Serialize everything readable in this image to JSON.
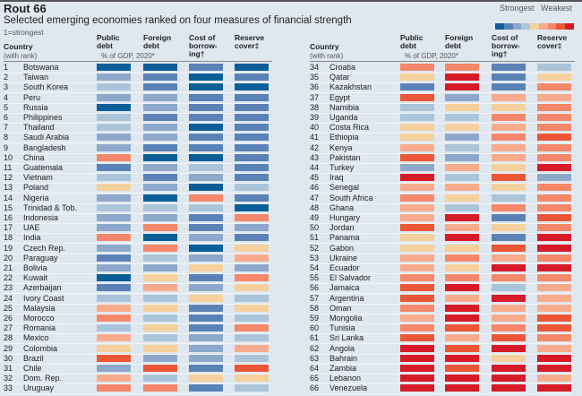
{
  "title": "Rout 66",
  "subtitle": "Selected emerging economies ranked on four measures of financial strength",
  "note": "1=strongest",
  "legend": {
    "strongest": "Strongest",
    "weakest": "Weakest"
  },
  "headers": {
    "country": "Country",
    "country_sub": "(with rank)",
    "public": "Public debt",
    "foreign": "Foreign debt",
    "units": "% of GDP, 2020*",
    "cost": "Cost of borrow-ing†",
    "reserve": "Reserve cover‡"
  },
  "colors": [
    "#0b5e98",
    "#5a82b6",
    "#8ea8cb",
    "#aac5da",
    "#f5d09c",
    "#f8ab8c",
    "#f5876a",
    "#ec5636",
    "#d61a28"
  ],
  "chart_data": {
    "type": "heatmap",
    "scale": "1 = strongest (dark blue) to 9 = weakest (red), colour level",
    "columns": [
      "Public debt",
      "Foreign debt",
      "Cost of borrowing",
      "Reserve cover"
    ],
    "rows": [
      [
        "1",
        "Botswana",
        [
          1,
          1,
          2,
          1
        ]
      ],
      [
        "2",
        "Taiwan",
        [
          3,
          2,
          1,
          2
        ]
      ],
      [
        "3",
        "South Korea",
        [
          4,
          2,
          1,
          1
        ]
      ],
      [
        "4",
        "Peru",
        [
          3,
          3,
          2,
          2
        ]
      ],
      [
        "5",
        "Russia",
        [
          1,
          3,
          2,
          2
        ]
      ],
      [
        "6",
        "Philippines",
        [
          4,
          2,
          2,
          2
        ]
      ],
      [
        "7",
        "Thailand",
        [
          4,
          3,
          1,
          2
        ]
      ],
      [
        "8",
        "Saudi Arabia",
        [
          3,
          3,
          2,
          2
        ]
      ],
      [
        "9",
        "Bangladesh",
        [
          3,
          2,
          2,
          2
        ]
      ],
      [
        "10",
        "China",
        [
          7,
          1,
          1,
          2
        ]
      ],
      [
        "11",
        "Guatemala",
        [
          2,
          3,
          4,
          2
        ]
      ],
      [
        "12",
        "Vietnam",
        [
          4,
          2,
          3,
          2
        ]
      ],
      [
        "13",
        "Poland",
        [
          5,
          3,
          1,
          4
        ]
      ],
      [
        "14",
        "Nigeria",
        [
          3,
          1,
          7,
          2
        ]
      ],
      [
        "15",
        "Trinidad & Tob.",
        [
          4,
          4,
          4,
          1
        ]
      ],
      [
        "16",
        "Indonesia",
        [
          3,
          3,
          2,
          7
        ]
      ],
      [
        "17",
        "UAE",
        [
          3,
          7,
          2,
          3
        ]
      ],
      [
        "18",
        "India",
        [
          7,
          1,
          3,
          2
        ]
      ],
      [
        "19",
        "Czech Rep.",
        [
          3,
          7,
          1,
          5
        ]
      ],
      [
        "20",
        "Paraguay",
        [
          2,
          4,
          3,
          6
        ]
      ],
      [
        "21",
        "Bolivia",
        [
          3,
          3,
          5,
          3
        ]
      ],
      [
        "22",
        "Kuwait",
        [
          1,
          5,
          2,
          7
        ]
      ],
      [
        "23",
        "Azerbaijan",
        [
          2,
          6,
          3,
          5
        ]
      ],
      [
        "24",
        "Ivory Coast",
        [
          4,
          4,
          5,
          4
        ]
      ],
      [
        "25",
        "Malaysia",
        [
          6,
          5,
          2,
          5
        ]
      ],
      [
        "26",
        "Morocco",
        [
          7,
          4,
          2,
          4
        ]
      ],
      [
        "27",
        "Romania",
        [
          4,
          5,
          2,
          7
        ]
      ],
      [
        "28",
        "Mexico",
        [
          6,
          4,
          3,
          4
        ]
      ],
      [
        "29",
        "Colombia",
        [
          5,
          5,
          3,
          6
        ]
      ],
      [
        "30",
        "Brazil",
        [
          8,
          3,
          3,
          4
        ]
      ],
      [
        "31",
        "Chile",
        [
          3,
          8,
          2,
          8
        ]
      ],
      [
        "32",
        "Dom. Rep.",
        [
          6,
          4,
          5,
          5
        ]
      ],
      [
        "33",
        "Uruguay",
        [
          7,
          7,
          2,
          4
        ]
      ],
      [
        "34",
        "Croatia",
        [
          7,
          7,
          2,
          4
        ]
      ],
      [
        "35",
        "Qatar",
        [
          5,
          9,
          2,
          5
        ]
      ],
      [
        "36",
        "Kazakhstan",
        [
          2,
          9,
          2,
          7
        ]
      ],
      [
        "37",
        "Egypt",
        [
          8,
          3,
          6,
          6
        ]
      ],
      [
        "38",
        "Namibia",
        [
          4,
          5,
          5,
          7
        ]
      ],
      [
        "39",
        "Uganda",
        [
          4,
          4,
          7,
          7
        ]
      ],
      [
        "40",
        "Costa Rica",
        [
          5,
          5,
          6,
          7
        ]
      ],
      [
        "41",
        "Ethiopia",
        [
          5,
          3,
          7,
          8
        ]
      ],
      [
        "42",
        "Kenya",
        [
          6,
          4,
          6,
          7
        ]
      ],
      [
        "43",
        "Pakistan",
        [
          8,
          3,
          6,
          7
        ]
      ],
      [
        "44",
        "Turkey",
        [
          3,
          6,
          5,
          9
        ]
      ],
      [
        "45",
        "Iraq",
        [
          9,
          4,
          8,
          3
        ]
      ],
      [
        "46",
        "Senegal",
        [
          6,
          6,
          5,
          7
        ]
      ],
      [
        "47",
        "South Africa",
        [
          7,
          5,
          4,
          7
        ]
      ],
      [
        "48",
        "Ghana",
        [
          6,
          4,
          7,
          7
        ]
      ],
      [
        "49",
        "Hungary",
        [
          6,
          9,
          2,
          8
        ]
      ],
      [
        "50",
        "Jordan",
        [
          8,
          6,
          5,
          7
        ]
      ],
      [
        "51",
        "Panama",
        [
          5,
          9,
          2,
          9
        ]
      ],
      [
        "52",
        "Gabon",
        [
          5,
          5,
          8,
          9
        ]
      ],
      [
        "53",
        "Ukraine",
        [
          6,
          7,
          6,
          7
        ]
      ],
      [
        "54",
        "Ecuador",
        [
          6,
          5,
          9,
          9
        ]
      ],
      [
        "55",
        "El Salvador",
        [
          7,
          7,
          7,
          7
        ]
      ],
      [
        "56",
        "Jamaica",
        [
          8,
          9,
          4,
          6
        ]
      ],
      [
        "57",
        "Argentina",
        [
          8,
          6,
          9,
          6
        ]
      ],
      [
        "58",
        "Oman",
        [
          7,
          9,
          6,
          6
        ]
      ],
      [
        "59",
        "Mongolia",
        [
          6,
          9,
          6,
          8
        ]
      ],
      [
        "60",
        "Tunisia",
        [
          7,
          8,
          7,
          8
        ]
      ],
      [
        "61",
        "Sri Lanka",
        [
          8,
          6,
          8,
          7
        ]
      ],
      [
        "62",
        "Angola",
        [
          9,
          8,
          9,
          6
        ]
      ],
      [
        "63",
        "Bahrain",
        [
          9,
          9,
          5,
          9
        ]
      ],
      [
        "64",
        "Zambia",
        [
          9,
          8,
          9,
          9
        ]
      ],
      [
        "65",
        "Lebanon",
        [
          9,
          9,
          9,
          6
        ]
      ],
      [
        "66",
        "Venezuela",
        [
          9,
          9,
          9,
          9
        ]
      ]
    ]
  }
}
